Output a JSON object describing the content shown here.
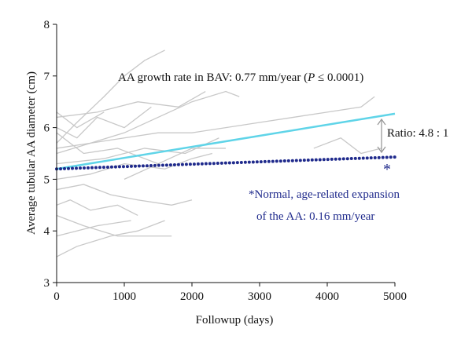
{
  "chart_data": {
    "type": "line",
    "xlabel": "Followup (days)",
    "ylabel": "Average tubular AA diameter (cm)",
    "xlim": [
      0,
      5000
    ],
    "xticks": [
      0,
      1000,
      2000,
      3000,
      4000,
      5000
    ],
    "ylim": [
      3,
      8
    ],
    "yticks": [
      3,
      4,
      5,
      6,
      7,
      8
    ],
    "series": [
      {
        "color": "#c8c8c8",
        "x": [
          0,
          300,
          700,
          1000,
          1300,
          1600
        ],
        "values": [
          5.7,
          6.1,
          6.6,
          7.0,
          7.3,
          7.5
        ]
      },
      {
        "color": "#c8c8c8",
        "x": [
          0,
          500,
          1000,
          1500,
          2000,
          2500,
          2700
        ],
        "values": [
          5.5,
          5.7,
          5.9,
          6.2,
          6.5,
          6.7,
          6.6
        ]
      },
      {
        "color": "#c8c8c8",
        "x": [
          0,
          400,
          900,
          1400,
          1700
        ],
        "values": [
          4.3,
          4.1,
          3.9,
          3.9,
          3.9
        ]
      },
      {
        "color": "#c8c8c8",
        "x": [
          0,
          300,
          800,
          1200,
          1600
        ],
        "values": [
          3.5,
          3.7,
          3.9,
          4.0,
          4.2
        ]
      },
      {
        "color": "#c8c8c8",
        "x": [
          0,
          600,
          1200,
          1800,
          2200
        ],
        "values": [
          6.2,
          6.3,
          6.5,
          6.4,
          6.7
        ]
      },
      {
        "color": "#c8c8c8",
        "x": [
          0,
          500,
          1000,
          1500,
          2000,
          2500,
          3000,
          3500,
          4000,
          4500,
          4700
        ],
        "values": [
          5.6,
          5.7,
          5.8,
          5.9,
          5.9,
          6.0,
          6.1,
          6.2,
          6.3,
          6.4,
          6.6
        ]
      },
      {
        "color": "#c8c8c8",
        "x": [
          0,
          400,
          800,
          1200,
          1700,
          2000
        ],
        "values": [
          4.8,
          4.9,
          4.7,
          4.6,
          4.5,
          4.6
        ]
      },
      {
        "color": "#c8c8c8",
        "x": [
          0,
          300,
          600,
          1000,
          1400
        ],
        "values": [
          6.0,
          5.8,
          6.2,
          6.0,
          6.4
        ]
      },
      {
        "color": "#c8c8c8",
        "x": [
          0,
          500,
          1000,
          1600,
          2000,
          2300
        ],
        "values": [
          5.0,
          5.1,
          5.3,
          5.2,
          5.4,
          5.5
        ]
      },
      {
        "color": "#c8c8c8",
        "x": [
          0,
          200,
          500,
          900,
          1200
        ],
        "values": [
          4.5,
          4.6,
          4.4,
          4.5,
          4.3
        ]
      },
      {
        "color": "#c8c8c8",
        "x": [
          0,
          700,
          1300,
          1900,
          2400
        ],
        "values": [
          5.3,
          5.4,
          5.6,
          5.5,
          5.8
        ]
      },
      {
        "color": "#c8c8c8",
        "x": [
          0,
          400,
          900,
          1500
        ],
        "values": [
          5.9,
          5.5,
          5.6,
          5.3
        ]
      },
      {
        "color": "#c8c8c8",
        "x": [
          3800,
          4200,
          4500,
          4800
        ],
        "values": [
          5.6,
          5.8,
          5.5,
          5.6
        ]
      },
      {
        "color": "#c8c8c8",
        "x": [
          0,
          300,
          700
        ],
        "values": [
          6.3,
          6.0,
          6.3
        ]
      },
      {
        "color": "#c8c8c8",
        "x": [
          1000,
          1500,
          2000,
          2500
        ],
        "values": [
          5.0,
          5.3,
          5.6,
          5.6
        ]
      },
      {
        "color": "#c8c8c8",
        "x": [
          0,
          600,
          1100
        ],
        "values": [
          3.9,
          4.1,
          4.2
        ]
      },
      {
        "color": "#5fd4e8",
        "x": [
          0,
          5000
        ],
        "values": [
          5.2,
          6.27
        ]
      },
      {
        "color": "#1f2a8c",
        "x": [
          0,
          5000
        ],
        "values": [
          5.2,
          5.43
        ],
        "dotted": true
      }
    ],
    "annotations": {
      "growth": [
        "AA growth rate in BAV: 0.77 mm/year (",
        "P",
        " ≤ 0.0001)"
      ],
      "ratio": "Ratio: 4.8 : 1",
      "star": "*",
      "normal_1": "*Normal, age-related expansion",
      "normal_2": "of the AA: 0.16 mm/year"
    }
  }
}
